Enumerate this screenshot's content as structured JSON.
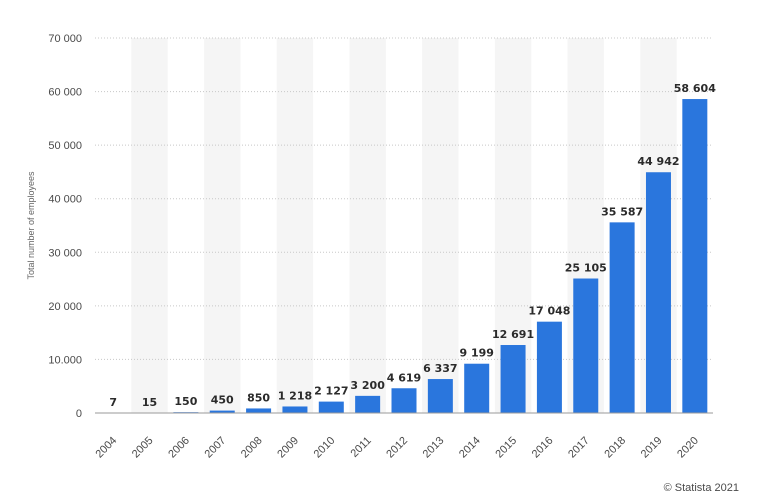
{
  "chart_data": {
    "type": "bar",
    "categories": [
      "2004",
      "2005",
      "2006",
      "2007",
      "2008",
      "2009",
      "2010",
      "2011",
      "2012",
      "2013",
      "2014",
      "2015",
      "2016",
      "2017",
      "2018",
      "2019",
      "2020"
    ],
    "values": [
      7,
      15,
      150,
      450,
      850,
      1218,
      2127,
      3200,
      4619,
      6337,
      9199,
      12691,
      17048,
      25105,
      35587,
      44942,
      58604
    ],
    "value_labels": [
      "7",
      "15",
      "150",
      "450",
      "850",
      "1 218",
      "2 127",
      "3 200",
      "4 619",
      "6 337",
      "9 199",
      "12 691",
      "17 048",
      "25 105",
      "35 587",
      "44 942",
      "58 604"
    ],
    "ylabel": "Total number of employees",
    "xlabel": "",
    "ylim": [
      0,
      70000
    ],
    "yticks": [
      0,
      10000,
      20000,
      30000,
      40000,
      50000,
      60000,
      70000
    ],
    "ytick_labels": [
      "0",
      "10.000",
      "20 000",
      "30 000",
      "40 000",
      "50 000",
      "60 000",
      "70 000"
    ],
    "grid": true,
    "bar_color": "#2a76dd",
    "band_color": "#f5f5f5",
    "grid_color": "#c8c8c8"
  },
  "credit": "© Statista 2021"
}
